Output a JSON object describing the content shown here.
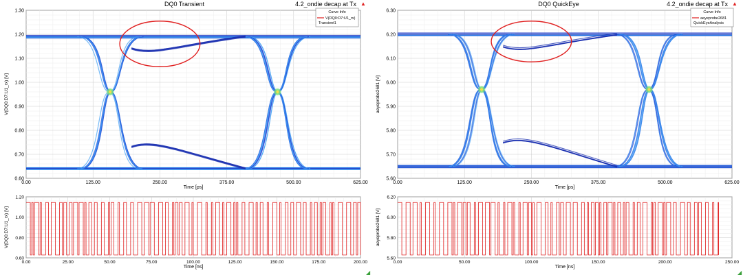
{
  "chart_data": [
    {
      "type": "eye",
      "title": "DQ0 Transient",
      "subtitle": "4.2_ondie decap at Tx",
      "xlabel": "Time [ps]",
      "ylabel": "V(DQ0:D7:U1_rx) [V]",
      "xlim": [
        0,
        625
      ],
      "ylim": [
        0.6,
        1.3
      ],
      "x_ticks": [
        "0.00",
        "125.00",
        "250.00",
        "375.00",
        "500.00",
        "625.00"
      ],
      "y_ticks": [
        "0.60",
        "0.70",
        "0.80",
        "0.90",
        "1.00",
        "1.10",
        "1.20",
        "1.30"
      ],
      "legend": {
        "header": "Curve Info",
        "entries": [
          "V(DQ0:D7:U1_rx)",
          "Transient1"
        ],
        "color": "#e02020"
      },
      "levels": {
        "high": 1.19,
        "high_min": 1.14,
        "low": 0.64,
        "low_max": 0.73
      },
      "crossings": [
        {
          "x": 157,
          "y": 0.96
        },
        {
          "x": 470,
          "y": 0.96
        }
      ],
      "highlight": {
        "x": 250,
        "y": 1.16,
        "rx": 75,
        "ry": 0.095,
        "color": "#e02020"
      }
    },
    {
      "type": "eye",
      "title": "DQ0 QuickEye",
      "subtitle": "4.2_ondie decap at Tx",
      "xlabel": "Time [ps]",
      "ylabel": "aeyeprobe2681 [V]",
      "xlim": [
        0,
        625
      ],
      "ylim": [
        5.6,
        6.3
      ],
      "x_ticks": [
        "0.00",
        "125.00",
        "250.00",
        "375.00",
        "500.00",
        "625.00"
      ],
      "y_ticks": [
        "5.60",
        "5.70",
        "5.80",
        "5.90",
        "6.00",
        "6.10",
        "6.20",
        "6.30"
      ],
      "legend": {
        "header": "Curve Info",
        "entries": [
          "aeyeprobe2681",
          "QuickEyeAnalysis"
        ],
        "color": "#e02020"
      },
      "levels": {
        "high": 6.2,
        "high_min": 6.15,
        "low": 5.65,
        "low_max": 5.75
      },
      "crossings": [
        {
          "x": 157,
          "y": 5.97
        },
        {
          "x": 470,
          "y": 5.97
        }
      ],
      "highlight": {
        "x": 250,
        "y": 6.17,
        "rx": 75,
        "ry": 0.085,
        "color": "#e02020"
      }
    },
    {
      "type": "line",
      "xlabel": "Time [ns]",
      "ylabel": "V(DQ0:D7:U1_rx) [V]",
      "xlim": [
        0,
        200
      ],
      "ylim": [
        0.6,
        1.25
      ],
      "x_ticks": [
        "0.00",
        "25.00",
        "50.00",
        "75.00",
        "100.00",
        "125.00",
        "150.00",
        "175.00",
        "200.00"
      ],
      "y_ticks": [
        "0.60",
        "0.80",
        "1.00",
        "1.20"
      ],
      "series": [
        {
          "color": "#e02020",
          "low": 0.63,
          "high": 1.19,
          "x_end": 200
        }
      ]
    },
    {
      "type": "line",
      "xlabel": "Time [ns]",
      "ylabel": "aeyeprobe2681 [V]",
      "xlim": [
        0,
        250
      ],
      "ylim": [
        5.6,
        6.25
      ],
      "x_ticks": [
        "0.00",
        "50.00",
        "100.00",
        "150.00",
        "200.00",
        "250.00"
      ],
      "y_ticks": [
        "5.60",
        "5.80",
        "6.00",
        "6.20"
      ],
      "series": [
        {
          "color": "#e02020",
          "low": 5.63,
          "high": 6.19,
          "x_end": 240
        }
      ]
    }
  ]
}
